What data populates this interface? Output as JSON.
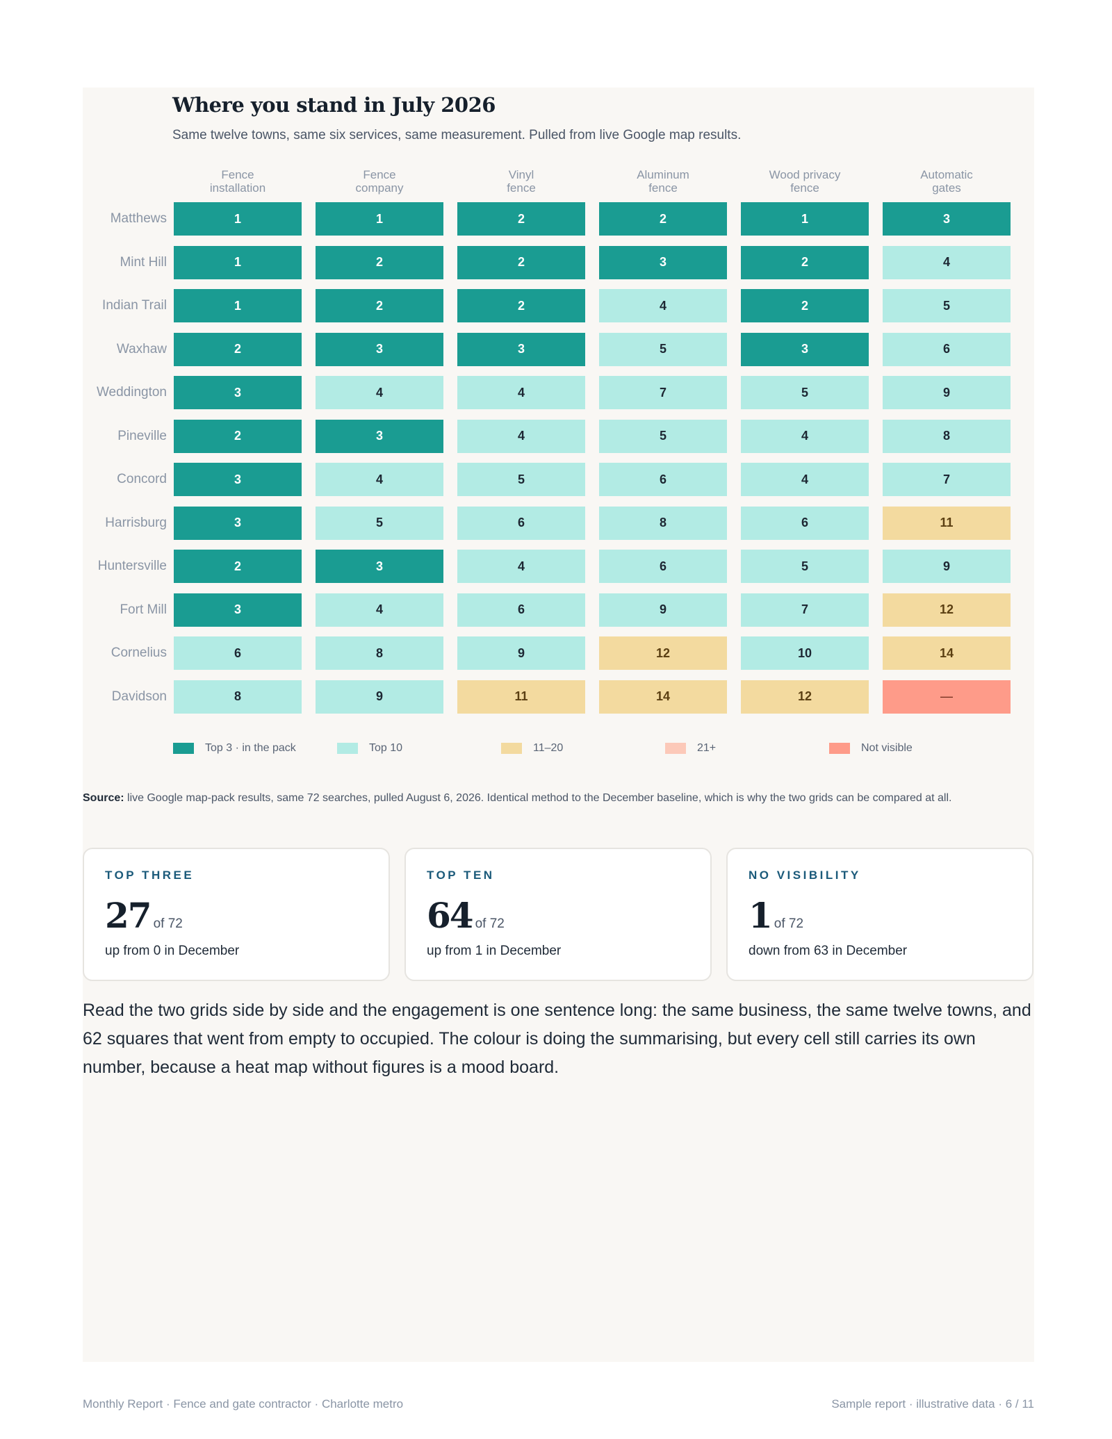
{
  "heatmap": {
    "title": "Where you stand in July 2026",
    "subtitle": "Same twelve towns, same six services, same measurement. Pulled from live Google map results.",
    "columns": [
      [
        "Fence",
        "installation"
      ],
      [
        "Fence",
        "company"
      ],
      [
        "Vinyl",
        "fence"
      ],
      [
        "Aluminum",
        "fence"
      ],
      [
        "Wood privacy",
        "fence"
      ],
      [
        "Automatic",
        "gates"
      ]
    ],
    "rows": [
      {
        "town": "Matthews",
        "values": [
          "1",
          "1",
          "2",
          "2",
          "1",
          "3"
        ]
      },
      {
        "town": "Mint Hill",
        "values": [
          "1",
          "2",
          "2",
          "3",
          "2",
          "4"
        ]
      },
      {
        "town": "Indian Trail",
        "values": [
          "1",
          "2",
          "2",
          "4",
          "2",
          "5"
        ]
      },
      {
        "town": "Waxhaw",
        "values": [
          "2",
          "3",
          "3",
          "5",
          "3",
          "6"
        ]
      },
      {
        "town": "Weddington",
        "values": [
          "3",
          "4",
          "4",
          "7",
          "5",
          "9"
        ]
      },
      {
        "town": "Pineville",
        "values": [
          "2",
          "3",
          "4",
          "5",
          "4",
          "8"
        ]
      },
      {
        "town": "Concord",
        "values": [
          "3",
          "4",
          "5",
          "6",
          "4",
          "7"
        ]
      },
      {
        "town": "Harrisburg",
        "values": [
          "3",
          "5",
          "6",
          "8",
          "6",
          "11"
        ]
      },
      {
        "town": "Huntersville",
        "values": [
          "2",
          "3",
          "4",
          "6",
          "5",
          "9"
        ]
      },
      {
        "town": "Fort Mill",
        "values": [
          "3",
          "4",
          "6",
          "9",
          "7",
          "12"
        ]
      },
      {
        "town": "Cornelius",
        "values": [
          "6",
          "8",
          "9",
          "12",
          "10",
          "14"
        ]
      },
      {
        "town": "Davidson",
        "values": [
          "8",
          "9",
          "11",
          "14",
          "12",
          "—"
        ]
      }
    ],
    "legend": [
      {
        "label": "Top 3 · in the pack",
        "color": "#1a9c92"
      },
      {
        "label": "Top 10",
        "color": "#b2ebe4"
      },
      {
        "label": "11–20",
        "color": "#f3da9f"
      },
      {
        "label": "21+",
        "color": "#fcc9b9"
      },
      {
        "label": "Not visible",
        "color": "#fe9b89"
      }
    ]
  },
  "source": {
    "label": "Source:",
    "text": " live Google map-pack results, same 72 searches, pulled August 6, 2026. Identical method to the December baseline, which is why the two grids can be compared at all."
  },
  "stats": [
    {
      "kicker": "TOP THREE",
      "value": "27",
      "of": "of 72",
      "note": "up from 0 in December"
    },
    {
      "kicker": "TOP TEN",
      "value": "64",
      "of": "of 72",
      "note": "up from 1 in December"
    },
    {
      "kicker": "NO VISIBILITY",
      "value": "1",
      "of": "of 72",
      "note": "down from 63 in December"
    }
  ],
  "body_text": "Read the two grids side by side and the engagement is one sentence long: the same business, the same twelve towns, and 62 squares that went from empty to occupied. The colour is doing the summarising, but every cell still carries its own number, because a heat map without figures is a mood board.",
  "footer": {
    "left": "Monthly Report · Fence and gate contractor · Charlotte metro",
    "right": "Sample report · illustrative data · 6 / 11"
  }
}
